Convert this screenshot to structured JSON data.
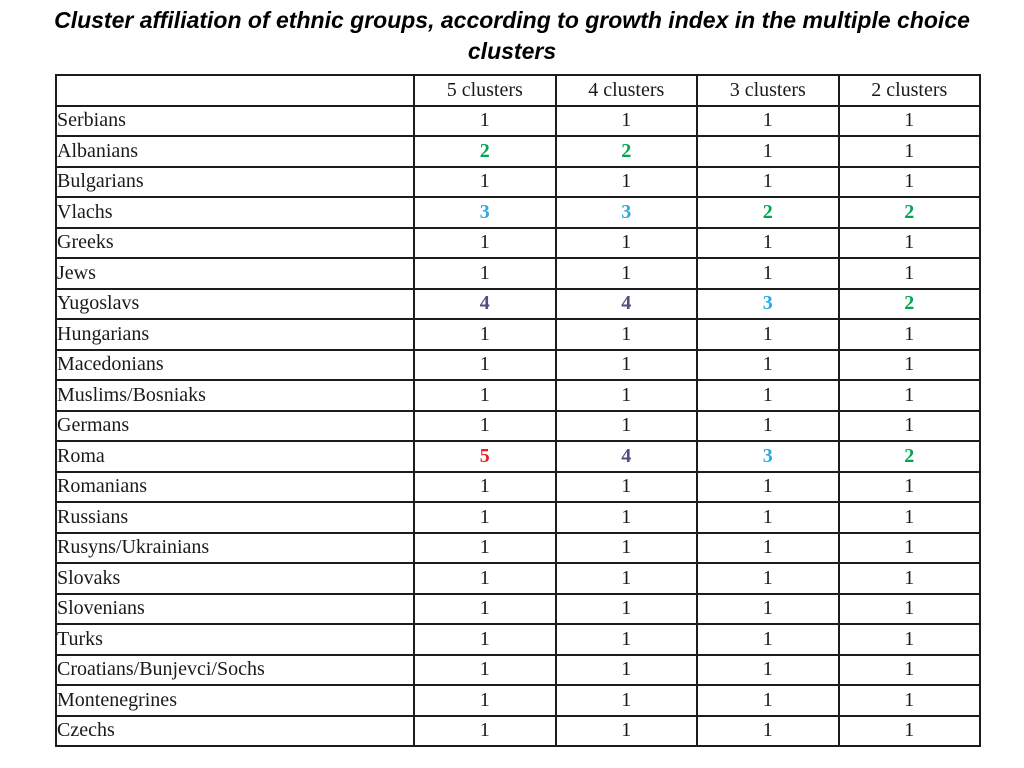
{
  "colors": {
    "black": "#1a1a1a",
    "green": "#00A651",
    "cyan": "#29ABE2",
    "purple": "#584A7F",
    "red": "#EC1C24"
  },
  "chart_data": {
    "type": "table",
    "title": "Cluster affiliation of ethnic groups, according to growth index in the multiple choice clusters",
    "row_header_column": "",
    "column_headers": [
      "5 clusters",
      "4 clusters",
      "3 clusters",
      "2 clusters"
    ],
    "value_color_map": {
      "1": "black",
      "2": "green",
      "3": "cyan",
      "4": "purple",
      "5": "red"
    },
    "rows": [
      {
        "group": "Serbians",
        "values": [
          1,
          1,
          1,
          1
        ]
      },
      {
        "group": "Albanians",
        "values": [
          2,
          2,
          1,
          1
        ]
      },
      {
        "group": "Bulgarians",
        "values": [
          1,
          1,
          1,
          1
        ]
      },
      {
        "group": "Vlachs",
        "values": [
          3,
          3,
          2,
          2
        ]
      },
      {
        "group": "Greeks",
        "values": [
          1,
          1,
          1,
          1
        ]
      },
      {
        "group": "Jews",
        "values": [
          1,
          1,
          1,
          1
        ]
      },
      {
        "group": "Yugoslavs",
        "values": [
          4,
          4,
          3,
          2
        ]
      },
      {
        "group": "Hungarians",
        "values": [
          1,
          1,
          1,
          1
        ]
      },
      {
        "group": "Macedonians",
        "values": [
          1,
          1,
          1,
          1
        ]
      },
      {
        "group": "Muslims/Bosniaks",
        "values": [
          1,
          1,
          1,
          1
        ]
      },
      {
        "group": "Germans",
        "values": [
          1,
          1,
          1,
          1
        ]
      },
      {
        "group": "Roma",
        "values": [
          5,
          4,
          3,
          2
        ]
      },
      {
        "group": "Romanians",
        "values": [
          1,
          1,
          1,
          1
        ]
      },
      {
        "group": "Russians",
        "values": [
          1,
          1,
          1,
          1
        ]
      },
      {
        "group": "Rusyns/Ukrainians",
        "values": [
          1,
          1,
          1,
          1
        ]
      },
      {
        "group": "Slovaks",
        "values": [
          1,
          1,
          1,
          1
        ]
      },
      {
        "group": "Slovenians",
        "values": [
          1,
          1,
          1,
          1
        ]
      },
      {
        "group": "Turks",
        "values": [
          1,
          1,
          1,
          1
        ]
      },
      {
        "group": "Croatians/Bunjevci/Sochs",
        "values": [
          1,
          1,
          1,
          1
        ]
      },
      {
        "group": "Montenegrines",
        "values": [
          1,
          1,
          1,
          1
        ]
      },
      {
        "group": "Czechs",
        "values": [
          1,
          1,
          1,
          1
        ]
      }
    ]
  }
}
